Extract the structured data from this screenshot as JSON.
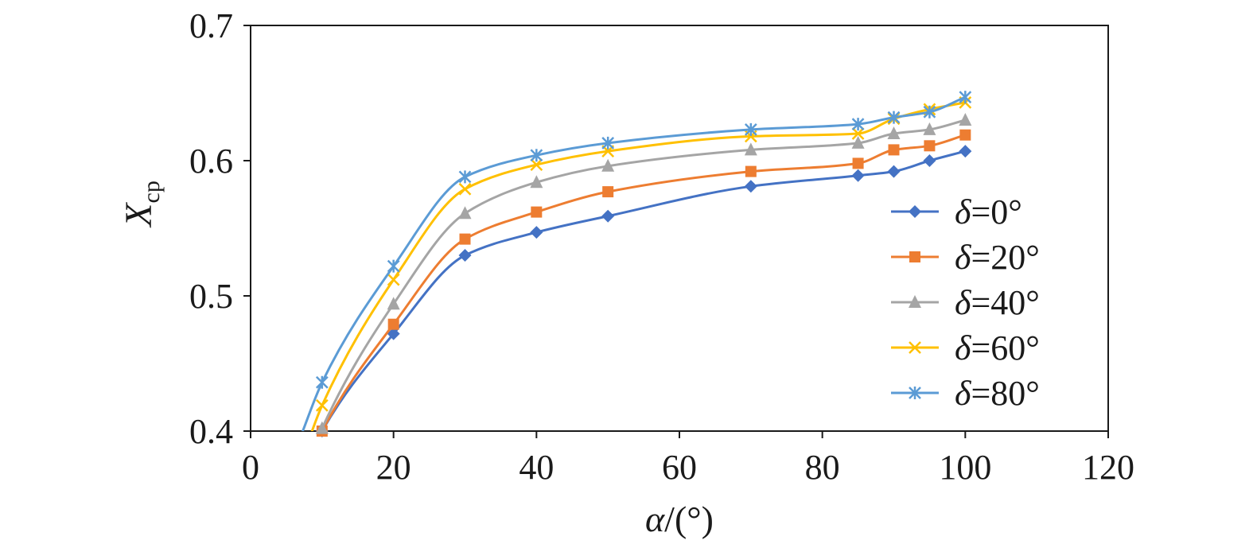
{
  "chart_data": {
    "type": "line",
    "x": [
      10,
      20,
      30,
      40,
      50,
      70,
      85,
      90,
      95,
      100
    ],
    "series": [
      {
        "name": "δ=0°",
        "symbol": "δ",
        "label_suffix": "=0°",
        "color": "#4472C4",
        "marker": "diamond",
        "values": [
          0.4,
          0.472,
          0.53,
          0.547,
          0.559,
          0.581,
          0.589,
          0.592,
          0.6,
          0.607
        ]
      },
      {
        "name": "δ=20°",
        "symbol": "δ",
        "label_suffix": "=20°",
        "color": "#ED7D31",
        "marker": "square",
        "values": [
          0.4,
          0.479,
          0.542,
          0.562,
          0.577,
          0.592,
          0.598,
          0.608,
          0.611,
          0.619
        ]
      },
      {
        "name": "δ=40°",
        "symbol": "δ",
        "label_suffix": "=40°",
        "color": "#A5A5A5",
        "marker": "triangle",
        "values": [
          0.402,
          0.494,
          0.561,
          0.584,
          0.596,
          0.608,
          0.613,
          0.62,
          0.623,
          0.63
        ]
      },
      {
        "name": "δ=60°",
        "symbol": "δ",
        "label_suffix": "=60°",
        "color": "#FFC000",
        "marker": "x",
        "values": [
          0.419,
          0.512,
          0.579,
          0.597,
          0.607,
          0.618,
          0.62,
          0.631,
          0.638,
          0.643
        ]
      },
      {
        "name": "δ=80°",
        "symbol": "δ",
        "label_suffix": "=80°",
        "color": "#5B9BD5",
        "marker": "star",
        "values": [
          0.436,
          0.522,
          0.588,
          0.604,
          0.613,
          0.623,
          0.627,
          0.632,
          0.636,
          0.647
        ]
      }
    ],
    "xlim": [
      0,
      120
    ],
    "ylim": [
      0.4,
      0.7
    ],
    "xticks": [
      0,
      20,
      40,
      60,
      80,
      100,
      120
    ],
    "yticks": [
      0.4,
      0.5,
      0.6,
      0.7
    ],
    "xtick_labels": [
      "0",
      "20",
      "40",
      "60",
      "80",
      "100",
      "120"
    ],
    "ytick_labels": [
      "0.4",
      "0.5",
      "0.6",
      "0.7"
    ],
    "xlabel": {
      "symbol": "α",
      "unit": "/(°)"
    },
    "ylabel": {
      "symbol": "X",
      "subscript": "cp"
    },
    "legend_position": "right",
    "grid": false
  }
}
